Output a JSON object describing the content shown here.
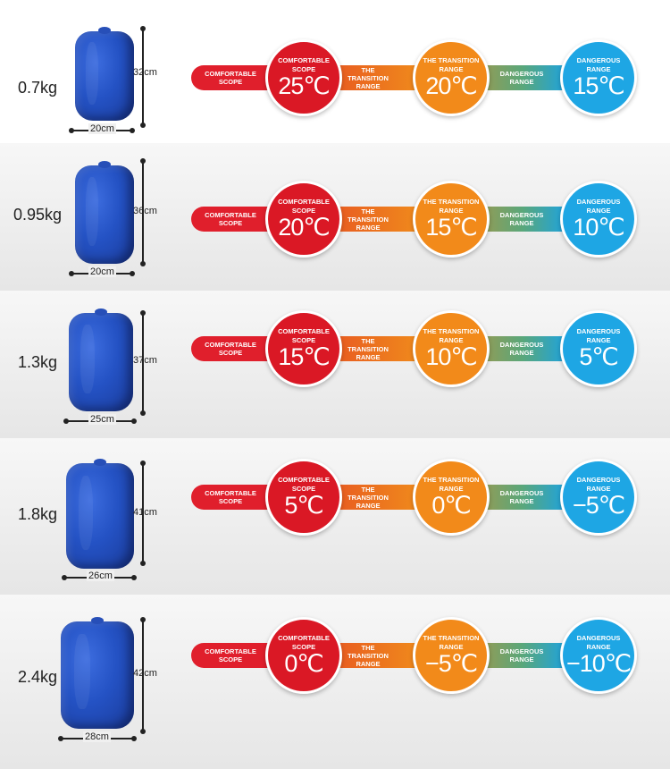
{
  "labels": {
    "segment_left": "COMFORTABLE SCOPE",
    "segment_mid": "THE TRANSITION RANGE",
    "segment_right": "DANGEROUS RANGE",
    "circle_red": "COMFORTABLE SCOPE",
    "circle_orange": "THE TRANSITION RANGE",
    "circle_blue": "DANGEROUS RANGE"
  },
  "colors": {
    "comfortable": "#da1825",
    "transition": "#f28a1a",
    "dangerous": "#1ea6e4",
    "bag": "#2452c4"
  },
  "rows": [
    {
      "weight": "0.7kg",
      "height": "32cm",
      "width": "20cm",
      "temps": [
        "25℃",
        "20℃",
        "15℃"
      ]
    },
    {
      "weight": "0.95kg",
      "height": "36cm",
      "width": "20cm",
      "temps": [
        "20℃",
        "15℃",
        "10℃"
      ]
    },
    {
      "weight": "1.3kg",
      "height": "37cm",
      "width": "25cm",
      "temps": [
        "15℃",
        "10℃",
        "5℃"
      ]
    },
    {
      "weight": "1.8kg",
      "height": "41cm",
      "width": "26cm",
      "temps": [
        "5℃",
        "0℃",
        "−5℃"
      ]
    },
    {
      "weight": "2.4kg",
      "height": "42cm",
      "width": "28cm",
      "temps": [
        "0℃",
        "−5℃",
        "−10℃"
      ]
    }
  ]
}
